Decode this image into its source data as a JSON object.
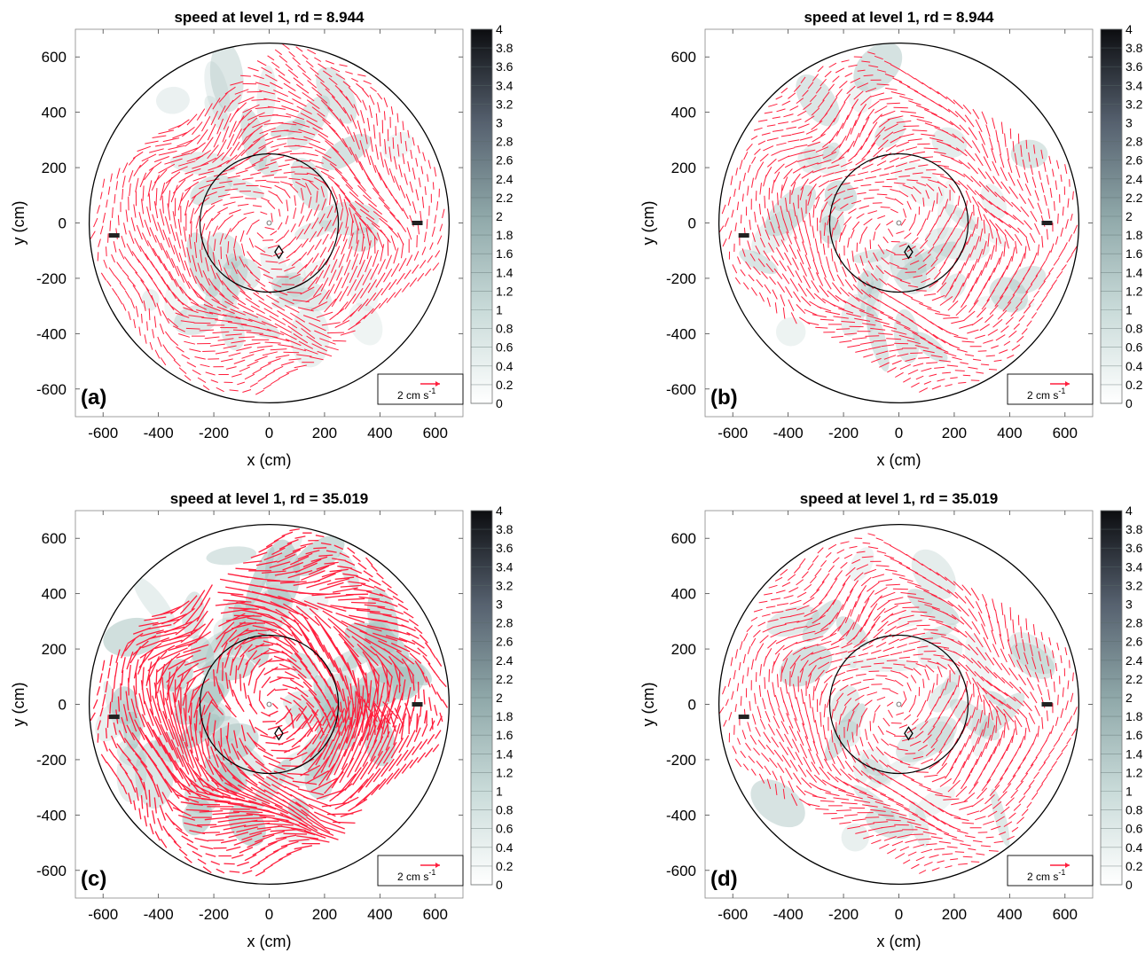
{
  "chart_data": [
    {
      "type": "quiver",
      "panel_label": "(a)",
      "title": "speed at level 1, rd = 8.944",
      "xlabel": "x (cm)",
      "ylabel": "y (cm)",
      "xlim": [
        -700,
        700
      ],
      "ylim": [
        -700,
        700
      ],
      "xticks": [
        "-600",
        "-400",
        "-200",
        "0",
        "200",
        "400",
        "600"
      ],
      "yticks": [
        "-600",
        "-400",
        "-200",
        "0",
        "200",
        "400",
        "600"
      ],
      "tank_radius": 650,
      "inner_circle_radius": 250,
      "colorbar": {
        "min": 0,
        "max": 4,
        "ticks": [
          "0",
          "0.2",
          "0.4",
          "0.6",
          "0.8",
          "1",
          "1.2",
          "1.4",
          "1.6",
          "1.8",
          "2",
          "2.2",
          "2.4",
          "2.6",
          "2.8",
          "3",
          "3.2",
          "3.4",
          "3.6",
          "3.8",
          "4"
        ]
      },
      "reference_vector": {
        "label": "2 cm s",
        "exponent": "-1"
      },
      "flow_intensity": 0.5
    },
    {
      "type": "quiver",
      "panel_label": "(b)",
      "title": "speed at level 1, rd = 8.944",
      "xlabel": "x (cm)",
      "ylabel": "y (cm)",
      "xlim": [
        -700,
        700
      ],
      "ylim": [
        -700,
        700
      ],
      "xticks": [
        "-600",
        "-400",
        "-200",
        "0",
        "200",
        "400",
        "600"
      ],
      "yticks": [
        "-600",
        "-400",
        "-200",
        "0",
        "200",
        "400",
        "600"
      ],
      "tank_radius": 650,
      "inner_circle_radius": 250,
      "colorbar": {
        "min": 0,
        "max": 4,
        "ticks": [
          "0",
          "0.2",
          "0.4",
          "0.6",
          "0.8",
          "1",
          "1.2",
          "1.4",
          "1.6",
          "1.8",
          "2",
          "2.2",
          "2.4",
          "2.6",
          "2.8",
          "3",
          "3.2",
          "3.4",
          "3.6",
          "3.8",
          "4"
        ]
      },
      "reference_vector": {
        "label": "2 cm s",
        "exponent": "-1"
      },
      "flow_intensity": 0.35
    },
    {
      "type": "quiver",
      "panel_label": "(c)",
      "title": "speed at level 1, rd = 35.019",
      "xlabel": "x (cm)",
      "ylabel": "y (cm)",
      "xlim": [
        -700,
        700
      ],
      "ylim": [
        -700,
        700
      ],
      "xticks": [
        "-600",
        "-400",
        "-200",
        "0",
        "200",
        "400",
        "600"
      ],
      "yticks": [
        "-600",
        "-400",
        "-200",
        "0",
        "200",
        "400",
        "600"
      ],
      "tank_radius": 650,
      "inner_circle_radius": 250,
      "colorbar": {
        "min": 0,
        "max": 4,
        "ticks": [
          "0",
          "0.2",
          "0.4",
          "0.6",
          "0.8",
          "1",
          "1.2",
          "1.4",
          "1.6",
          "1.8",
          "2",
          "2.2",
          "2.4",
          "2.6",
          "2.8",
          "3",
          "3.2",
          "3.4",
          "3.6",
          "3.8",
          "4"
        ]
      },
      "reference_vector": {
        "label": "2 cm s",
        "exponent": "-1"
      },
      "flow_intensity": 1.0
    },
    {
      "type": "quiver",
      "panel_label": "(d)",
      "title": "speed at level 1, rd = 35.019",
      "xlabel": "x (cm)",
      "ylabel": "y (cm)",
      "xlim": [
        -700,
        700
      ],
      "ylim": [
        -700,
        700
      ],
      "xticks": [
        "-600",
        "-400",
        "-200",
        "0",
        "200",
        "400",
        "600"
      ],
      "yticks": [
        "-600",
        "-400",
        "-200",
        "0",
        "200",
        "400",
        "600"
      ],
      "tank_radius": 650,
      "inner_circle_radius": 250,
      "colorbar": {
        "min": 0,
        "max": 4,
        "ticks": [
          "0",
          "0.2",
          "0.4",
          "0.6",
          "0.8",
          "1",
          "1.2",
          "1.4",
          "1.6",
          "1.8",
          "2",
          "2.2",
          "2.4",
          "2.6",
          "2.8",
          "3",
          "3.2",
          "3.4",
          "3.6",
          "3.8",
          "4"
        ]
      },
      "reference_vector": {
        "label": "2 cm s",
        "exponent": "-1"
      },
      "flow_intensity": 0.4
    }
  ],
  "colors": {
    "arrow": "#ff1f3d",
    "tank": "#000000",
    "speed_low": "#ffffff",
    "speed_mid": "#a9c4c1",
    "speed_high": "#1b1e24"
  }
}
